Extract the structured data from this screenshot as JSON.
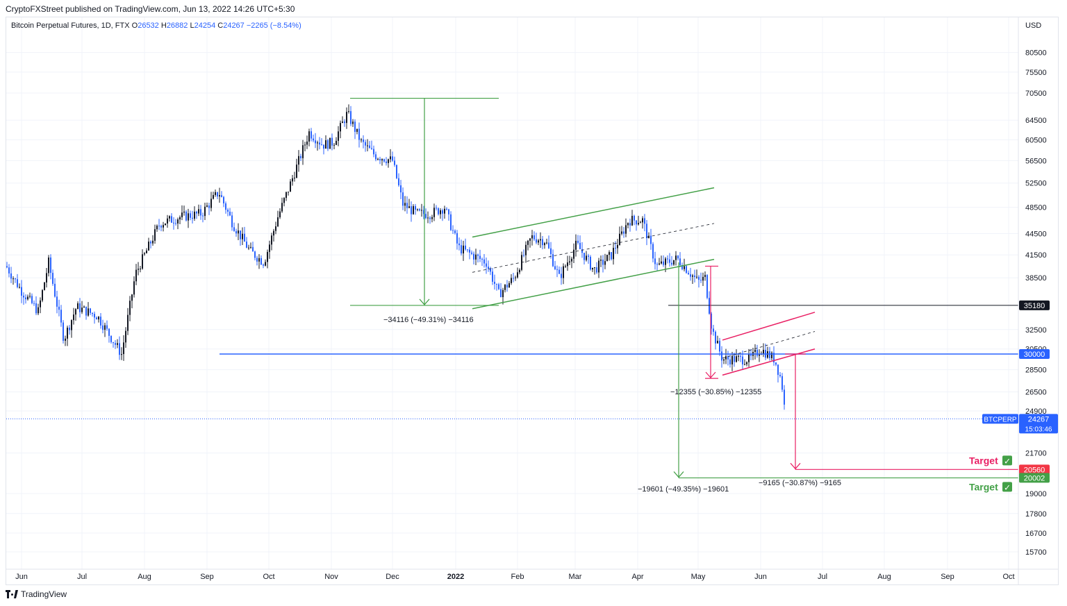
{
  "header": {
    "publish_text": "CryptoFXStreet published on TradingView.com, Jun 13, 2022 14:26 UTC+5:30"
  },
  "legend": {
    "symbol": "Bitcoin Perpetual Futures, 1D, FTX",
    "o_label": "O",
    "o_value": "26532",
    "h_label": "H",
    "h_value": "26882",
    "l_label": "L",
    "l_value": "24254",
    "c_label": "C",
    "c_value": "24267",
    "change": "−2265 (−8.54%)"
  },
  "footer": {
    "brand": "TradingView"
  },
  "chart_data": {
    "type": "candlestick",
    "currency_label": "USD",
    "scale": "log",
    "ylim": [
      15000,
      89000
    ],
    "y_ticks": [
      "80500",
      "75500",
      "70500",
      "64500",
      "60500",
      "56500",
      "52500",
      "48500",
      "44500",
      "41500",
      "38500",
      "32500",
      "30500",
      "28500",
      "26500",
      "24900",
      "21700",
      "19000",
      "17800",
      "16700",
      "15700"
    ],
    "x_ticks": [
      "Jun",
      "Jul",
      "Aug",
      "Sep",
      "Oct",
      "Nov",
      "Dec",
      "2022",
      "Feb",
      "Mar",
      "Apr",
      "May",
      "Jun",
      "Jul",
      "Aug",
      "Sep",
      "Oct"
    ],
    "grid": true,
    "price_tags": [
      {
        "value": 35180,
        "text": "35180",
        "bg": "#131722",
        "fg": "#ffffff"
      },
      {
        "value": 30000,
        "text": "30000",
        "bg": "#2962ff",
        "fg": "#ffffff"
      },
      {
        "value": 20560,
        "text": "20560",
        "bg": "#f23645",
        "fg": "#ffffff"
      },
      {
        "value": 20002,
        "text": "20002",
        "bg": "#43a047",
        "fg": "#ffffff"
      }
    ],
    "last_price": {
      "symbol": "BTCPERP",
      "value": "24267",
      "countdown": "15:03:46",
      "bg": "#2962ff"
    },
    "measure_labels": [
      "−34116 (−49.31%) −34116",
      "−12355 (−30.85%) −12355",
      "−19601 (−49.35%) −19601",
      "−9165 (−30.87%) −9165"
    ],
    "targets": [
      {
        "label": "Target",
        "color": "#e91e63",
        "check": "✓"
      },
      {
        "label": "Target",
        "color": "#43a047",
        "check": "✓"
      }
    ],
    "colors": {
      "up": "#131722",
      "down": "#2962ff",
      "green": "#43a047",
      "pink": "#e91e63",
      "horizontal": "#2962ff"
    }
  }
}
